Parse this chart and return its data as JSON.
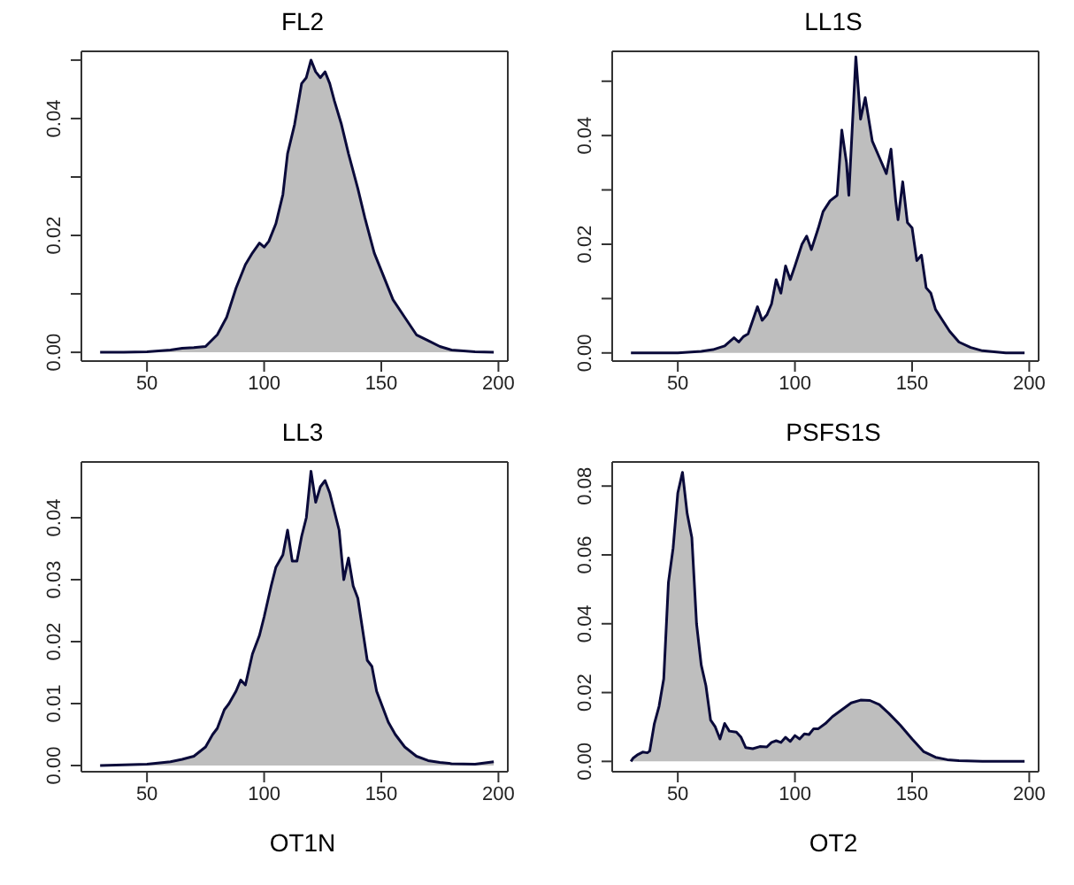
{
  "chart_data": [
    {
      "type": "area",
      "title": "FL2",
      "color": "#bebebe",
      "xlim": [
        22,
        204
      ],
      "xticks": [
        50,
        100,
        150,
        200
      ],
      "ylim": [
        -0.0015,
        0.0515
      ],
      "yticks": [
        {
          "value": 0,
          "label": "0.00"
        },
        {
          "value": 0.01,
          "label": null
        },
        0.02,
        {
          "value": 0.03,
          "label": null
        },
        0.04,
        {
          "value": 0.05,
          "label": null
        }
      ],
      "x": [
        30,
        40,
        50,
        60,
        65,
        70,
        75,
        80,
        84,
        88,
        92,
        95,
        98,
        100,
        102,
        105,
        108,
        110,
        113,
        116,
        118,
        120,
        122,
        124,
        126,
        128,
        130,
        133,
        136,
        140,
        143,
        147,
        150,
        155,
        160,
        165,
        170,
        175,
        180,
        190,
        198
      ],
      "values": [
        0,
        0,
        0.0001,
        0.0004,
        0.0007,
        0.0008,
        0.001,
        0.003,
        0.006,
        0.011,
        0.015,
        0.017,
        0.0187,
        0.018,
        0.019,
        0.022,
        0.027,
        0.034,
        0.039,
        0.046,
        0.047,
        0.05,
        0.048,
        0.047,
        0.048,
        0.046,
        0.043,
        0.039,
        0.034,
        0.028,
        0.023,
        0.017,
        0.014,
        0.009,
        0.006,
        0.003,
        0.002,
        0.001,
        0.0004,
        0.0001,
        0
      ]
    },
    {
      "type": "area",
      "title": "LL1S",
      "color": "#bebebe",
      "xlim": [
        22,
        204
      ],
      "xticks": [
        50,
        100,
        150,
        200
      ],
      "ylim": [
        -0.0015,
        0.0555
      ],
      "yticks": [
        {
          "value": 0,
          "label": "0.00"
        },
        {
          "value": 0.01,
          "label": null
        },
        0.02,
        {
          "value": 0.03,
          "label": null
        },
        0.04,
        {
          "value": 0.05,
          "label": null
        }
      ],
      "x": [
        30,
        50,
        60,
        65,
        70,
        74,
        76,
        78,
        80,
        82,
        84,
        86,
        88,
        90,
        92,
        94,
        96,
        98,
        100,
        103,
        105,
        107,
        110,
        112,
        115,
        118,
        120,
        122,
        123,
        126,
        128,
        130,
        133,
        136,
        139,
        141,
        143,
        144,
        146,
        148,
        150,
        152,
        154,
        156,
        158,
        160,
        163,
        166,
        170,
        175,
        180,
        190,
        198
      ],
      "values": [
        0,
        0,
        0.0003,
        0.0006,
        0.0013,
        0.0028,
        0.002,
        0.003,
        0.0035,
        0.006,
        0.0085,
        0.006,
        0.007,
        0.009,
        0.0135,
        0.011,
        0.016,
        0.0135,
        0.016,
        0.02,
        0.0215,
        0.019,
        0.023,
        0.026,
        0.028,
        0.029,
        0.041,
        0.035,
        0.029,
        0.0545,
        0.043,
        0.047,
        0.039,
        0.036,
        0.033,
        0.0375,
        0.028,
        0.0245,
        0.0315,
        0.024,
        0.023,
        0.017,
        0.018,
        0.012,
        0.011,
        0.008,
        0.006,
        0.004,
        0.002,
        0.001,
        0.0004,
        0,
        0
      ]
    },
    {
      "type": "area",
      "title": "LL3",
      "color": "#bebebe",
      "xlim": [
        22,
        204
      ],
      "xticks": [
        50,
        100,
        150,
        200
      ],
      "ylim": [
        -0.001,
        0.049
      ],
      "yticks": [
        {
          "value": 0,
          "label": "0.00"
        },
        0.01,
        0.02,
        0.03,
        0.04
      ],
      "x": [
        30,
        50,
        60,
        65,
        70,
        75,
        78,
        80,
        83,
        85,
        88,
        90,
        92,
        95,
        98,
        100,
        103,
        105,
        108,
        110,
        112,
        114,
        116,
        118,
        120,
        122,
        124,
        126,
        128,
        130,
        132,
        134,
        136,
        138,
        140,
        142,
        144,
        146,
        148,
        150,
        153,
        156,
        160,
        165,
        170,
        175,
        180,
        190,
        198
      ],
      "values": [
        0,
        0.0002,
        0.0006,
        0.001,
        0.0015,
        0.003,
        0.005,
        0.006,
        0.009,
        0.01,
        0.012,
        0.0138,
        0.013,
        0.018,
        0.021,
        0.024,
        0.029,
        0.032,
        0.034,
        0.038,
        0.033,
        0.033,
        0.037,
        0.04,
        0.0475,
        0.0425,
        0.045,
        0.046,
        0.044,
        0.041,
        0.038,
        0.03,
        0.0335,
        0.029,
        0.027,
        0.022,
        0.017,
        0.016,
        0.012,
        0.01,
        0.007,
        0.005,
        0.003,
        0.0015,
        0.0008,
        0.0005,
        0.0003,
        0.0002,
        0.0006
      ]
    },
    {
      "type": "area",
      "title": "PSFS1S",
      "color": "#bebebe",
      "xlim": [
        22,
        204
      ],
      "xticks": [
        50,
        100,
        150,
        200
      ],
      "ylim": [
        -0.003,
        0.087
      ],
      "yticks": [
        {
          "value": 0,
          "label": "0.00"
        },
        0.02,
        0.04,
        0.06,
        0.08
      ],
      "x": [
        30,
        31,
        33,
        35,
        37,
        38,
        40,
        42,
        44,
        46,
        48,
        50,
        52,
        54,
        56,
        58,
        60,
        62,
        64,
        66,
        68,
        70,
        72,
        75,
        77,
        79,
        82,
        85,
        88,
        90,
        92,
        94,
        96,
        98,
        100,
        102,
        104,
        106,
        108,
        110,
        113,
        116,
        120,
        124,
        128,
        132,
        136,
        140,
        145,
        150,
        155,
        160,
        165,
        170,
        180,
        198
      ],
      "values": [
        0,
        0.001,
        0.002,
        0.0027,
        0.0025,
        0.003,
        0.011,
        0.016,
        0.024,
        0.052,
        0.062,
        0.078,
        0.084,
        0.072,
        0.065,
        0.04,
        0.028,
        0.022,
        0.012,
        0.01,
        0.0065,
        0.011,
        0.0088,
        0.0085,
        0.007,
        0.004,
        0.0037,
        0.0043,
        0.0042,
        0.0055,
        0.006,
        0.0055,
        0.007,
        0.0058,
        0.0075,
        0.0065,
        0.008,
        0.0078,
        0.0095,
        0.0095,
        0.011,
        0.013,
        0.015,
        0.017,
        0.0178,
        0.0177,
        0.0165,
        0.014,
        0.0105,
        0.0065,
        0.0028,
        0.0012,
        0.0005,
        0.0002,
        0,
        0
      ]
    },
    {
      "type": "other",
      "title": "OT1N"
    },
    {
      "type": "other",
      "title": "OT2"
    }
  ]
}
